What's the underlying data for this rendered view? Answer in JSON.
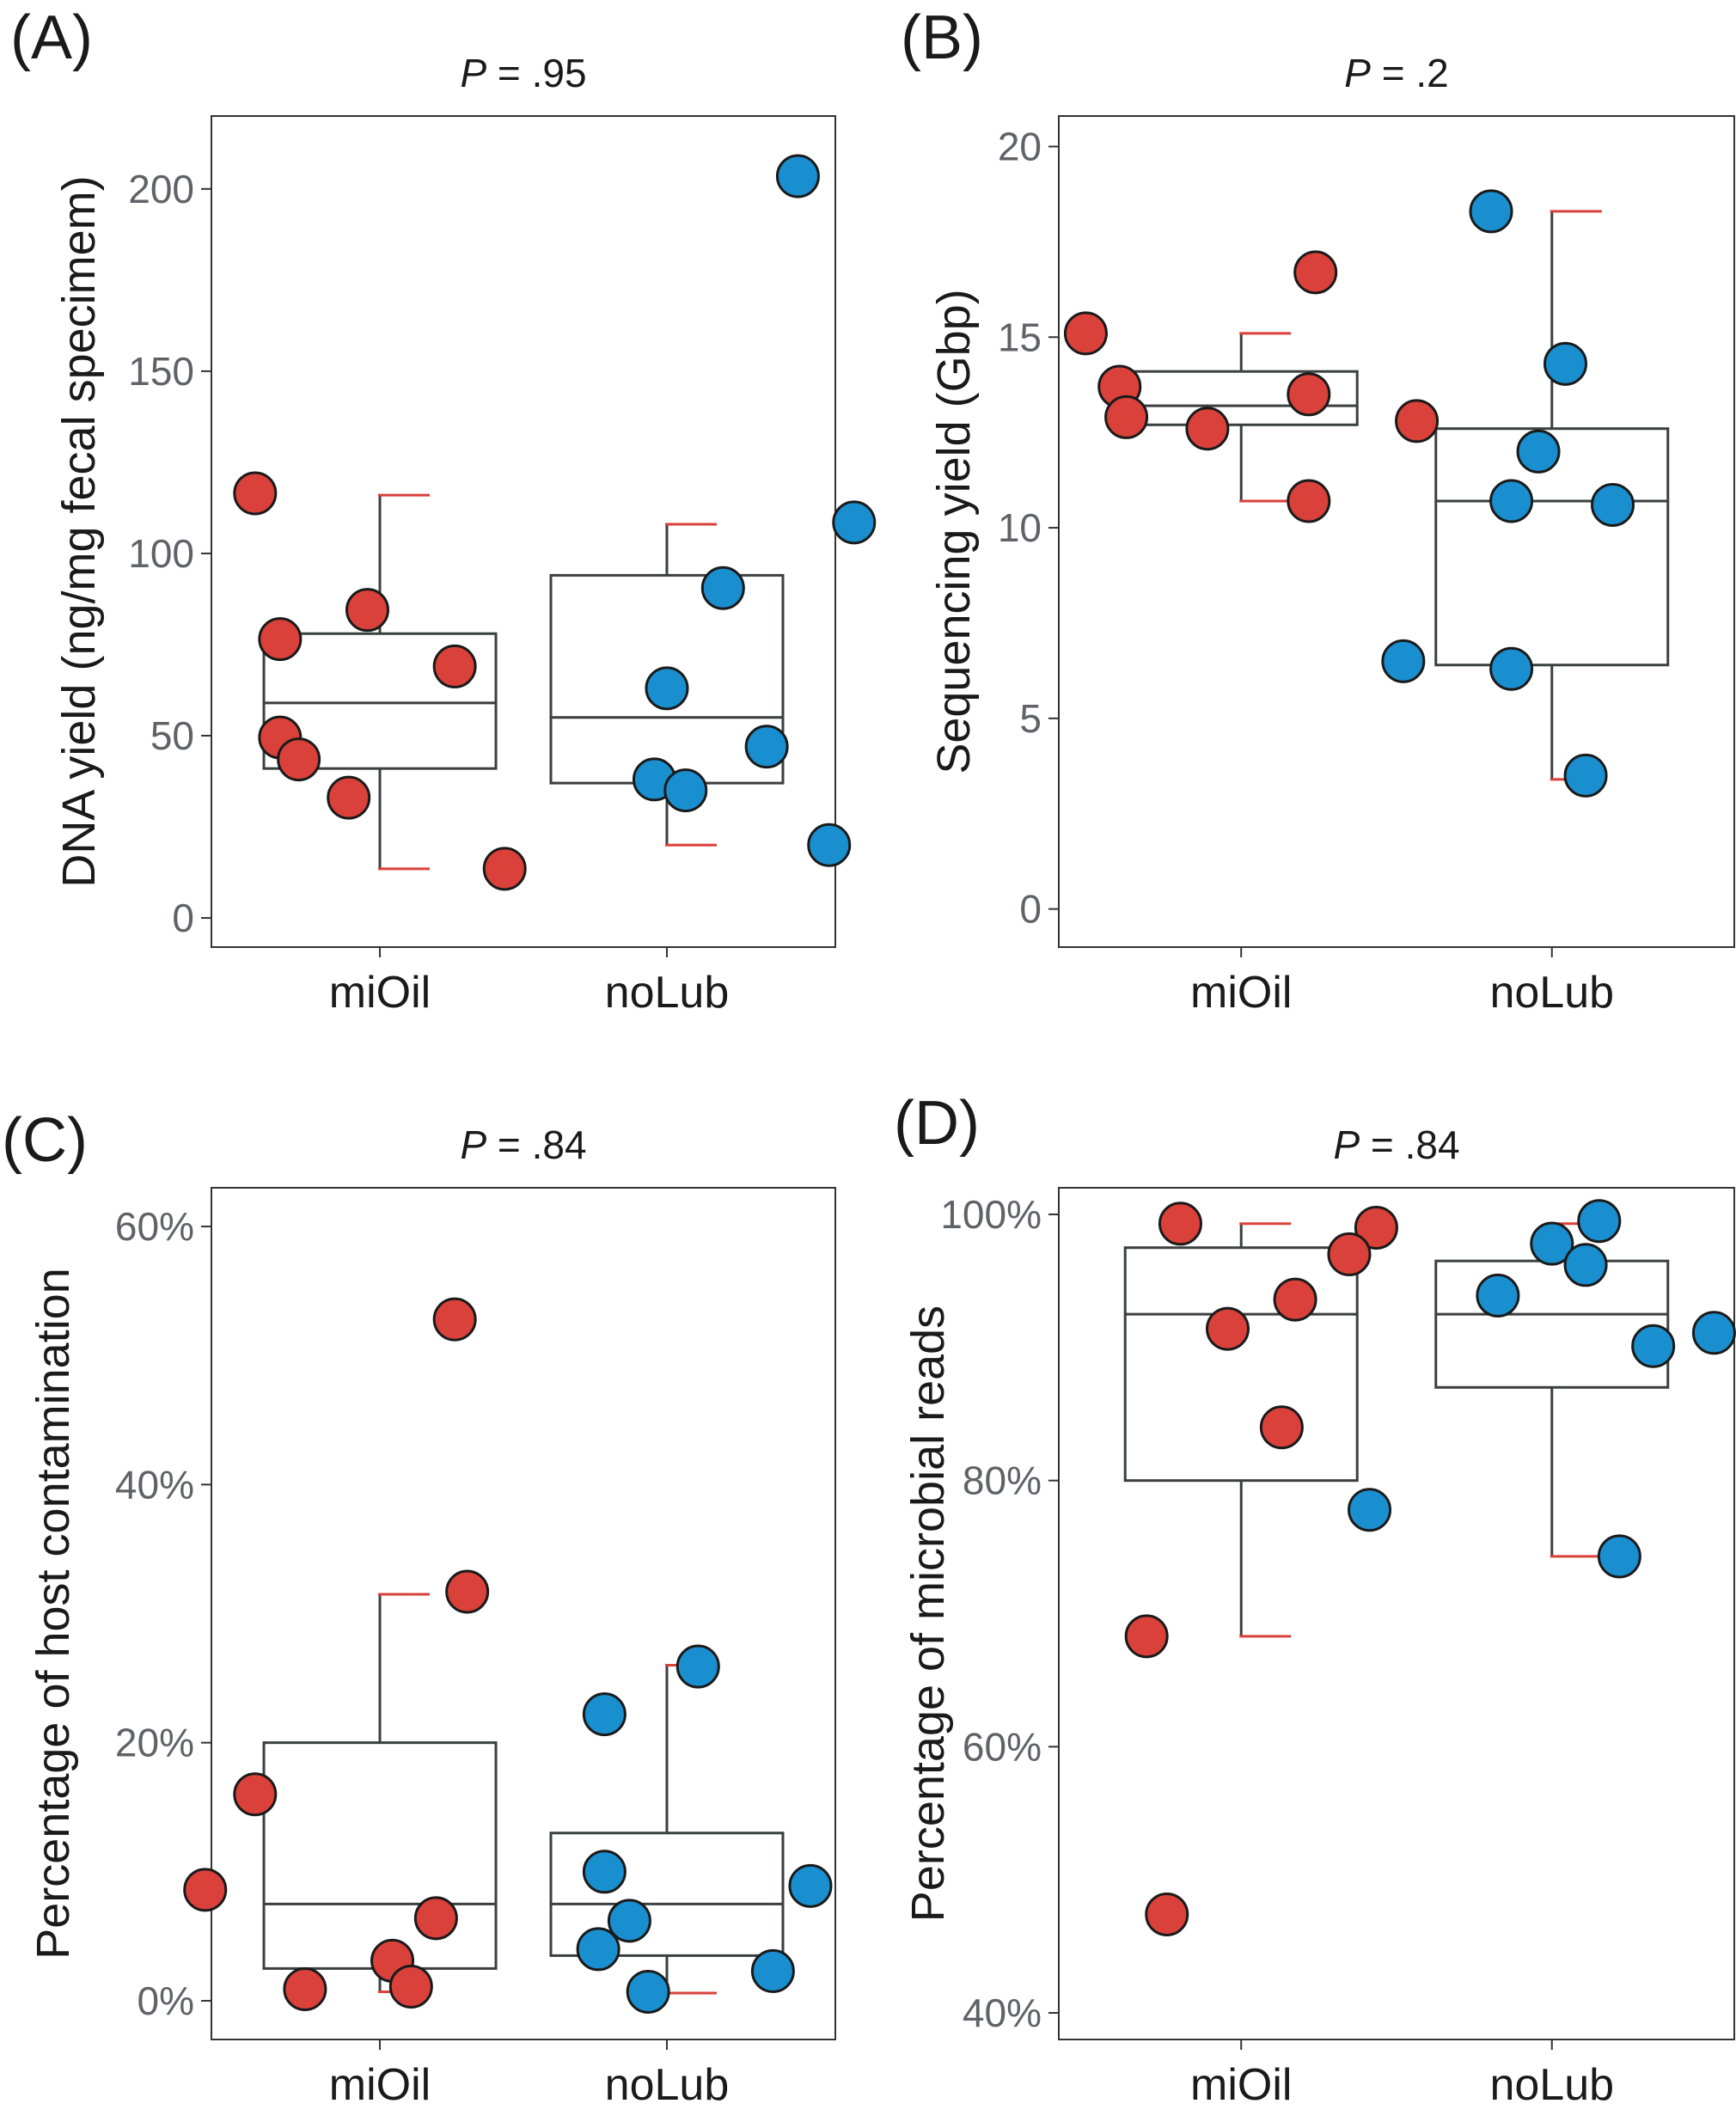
{
  "colors": {
    "miOil": "#d9413a",
    "noLub": "#1a8fcf",
    "box_stroke": "#3a3f3f",
    "whisker_cap": "#d9413a"
  },
  "chart_data": [
    {
      "panel": "(A)",
      "type": "boxplot",
      "p_prefix": "P",
      "p_value": " = .95",
      "ylabel": "DNA yield (ng/mg fecal specimem)",
      "ylim": [
        -8,
        220
      ],
      "yticks": [
        0,
        50,
        100,
        150,
        200
      ],
      "ytick_labels": [
        "0",
        "50",
        "100",
        "150",
        "200"
      ],
      "grid": false,
      "categories": [
        "miOil",
        "noLub"
      ],
      "boxes": [
        {
          "group": "miOil",
          "q1": 41,
          "median": 59,
          "q3": 78,
          "whisker_low": 13.5,
          "whisker_high": 116
        },
        {
          "group": "noLub",
          "q1": 37,
          "median": 55,
          "q3": 94,
          "whisker_low": 20,
          "whisker_high": 108
        }
      ],
      "series": [
        {
          "group": "miOil",
          "points": [
            [
              -0.2,
              116.5
            ],
            [
              -0.02,
              84.5
            ],
            [
              0.12,
              69
            ],
            [
              -0.16,
              76.5
            ],
            [
              -0.16,
              49.5
            ],
            [
              -0.13,
              43.5
            ],
            [
              -0.05,
              33
            ],
            [
              0.2,
              13.5
            ]
          ]
        },
        {
          "group": "noLub",
          "points": [
            [
              0.21,
              203.5
            ],
            [
              0.3,
              108.5
            ],
            [
              0.09,
              90.5
            ],
            [
              0.0,
              63
            ],
            [
              0.16,
              47
            ],
            [
              -0.02,
              38
            ],
            [
              0.03,
              35
            ],
            [
              0.26,
              20
            ]
          ]
        }
      ]
    },
    {
      "panel": "(B)",
      "type": "boxplot",
      "p_prefix": "P",
      "p_value": " = .2",
      "ylabel": "Sequencing yield (Gbp)",
      "ylim": [
        -1,
        20.8
      ],
      "yticks": [
        0,
        5,
        10,
        15,
        20
      ],
      "ytick_labels": [
        "0",
        "5",
        "10",
        "15",
        "20"
      ],
      "grid": false,
      "categories": [
        "miOil",
        "noLub"
      ],
      "boxes": [
        {
          "group": "miOil",
          "q1": 12.7,
          "median": 13.2,
          "q3": 14.1,
          "whisker_low": 10.7,
          "whisker_high": 15.1
        },
        {
          "group": "noLub",
          "q1": 6.4,
          "median": 10.7,
          "q3": 12.6,
          "whisker_low": 3.4,
          "whisker_high": 18.3
        }
      ],
      "series": [
        {
          "group": "miOil",
          "points": [
            [
              0.11,
              16.7
            ],
            [
              -0.23,
              15.1
            ],
            [
              -0.18,
              13.7
            ],
            [
              0.1,
              13.5
            ],
            [
              -0.17,
              12.9
            ],
            [
              -0.05,
              12.6
            ],
            [
              0.26,
              12.8
            ],
            [
              0.1,
              10.7
            ]
          ]
        },
        {
          "group": "noLub",
          "points": [
            [
              -0.09,
              18.3
            ],
            [
              0.02,
              14.3
            ],
            [
              -0.02,
              12.0
            ],
            [
              -0.06,
              10.7
            ],
            [
              0.09,
              10.6
            ],
            [
              -0.22,
              6.5
            ],
            [
              -0.06,
              6.3
            ],
            [
              0.05,
              3.5
            ]
          ]
        }
      ]
    },
    {
      "panel": "(C)",
      "type": "boxplot",
      "p_prefix": "P",
      "p_value": " = .84",
      "ylabel": "Percentage of host contamination",
      "ylim": [
        -0.03,
        0.63
      ],
      "yticks": [
        0,
        0.2,
        0.4,
        0.6
      ],
      "ytick_labels": [
        "0%",
        "20%",
        "40%",
        "60%"
      ],
      "grid": false,
      "categories": [
        "miOil",
        "noLub"
      ],
      "boxes": [
        {
          "group": "miOil",
          "q1": 0.025,
          "median": 0.075,
          "q3": 0.2,
          "whisker_low": 0.007,
          "whisker_high": 0.315
        },
        {
          "group": "noLub",
          "q1": 0.035,
          "median": 0.075,
          "q3": 0.13,
          "whisker_low": 0.006,
          "whisker_high": 0.26
        }
      ],
      "series": [
        {
          "group": "miOil",
          "points": [
            [
              0.12,
              0.528
            ],
            [
              0.14,
              0.317
            ],
            [
              -0.2,
              0.16
            ],
            [
              -0.28,
              0.086
            ],
            [
              0.09,
              0.064
            ],
            [
              0.02,
              0.031
            ],
            [
              -0.12,
              0.009
            ],
            [
              0.05,
              0.011
            ]
          ]
        },
        {
          "group": "noLub",
          "points": [
            [
              0.05,
              0.259
            ],
            [
              -0.1,
              0.222
            ],
            [
              -0.1,
              0.1
            ],
            [
              0.23,
              0.089
            ],
            [
              -0.06,
              0.062
            ],
            [
              -0.11,
              0.04
            ],
            [
              0.17,
              0.023
            ],
            [
              -0.03,
              0.007
            ]
          ]
        }
      ]
    },
    {
      "panel": "(D)",
      "type": "boxplot",
      "p_prefix": "P",
      "p_value": " = .84",
      "ylabel": "Percentage of microbial reads",
      "ylim": [
        0.38,
        1.02
      ],
      "yticks": [
        0.4,
        0.6,
        0.8,
        1.0
      ],
      "ytick_labels": [
        "40%",
        "60%",
        "80%",
        "100%"
      ],
      "grid": false,
      "categories": [
        "miOil",
        "noLub"
      ],
      "boxes": [
        {
          "group": "miOil",
          "q1": 0.8,
          "median": 0.925,
          "q3": 0.975,
          "whisker_low": 0.683,
          "whisker_high": 0.993
        },
        {
          "group": "noLub",
          "q1": 0.87,
          "median": 0.925,
          "q3": 0.965,
          "whisker_low": 0.743,
          "whisker_high": 0.993
        }
      ],
      "series": [
        {
          "group": "miOil",
          "points": [
            [
              -0.09,
              0.993
            ],
            [
              0.2,
              0.99
            ],
            [
              0.16,
              0.97
            ],
            [
              0.08,
              0.936
            ],
            [
              -0.02,
              0.914
            ],
            [
              0.06,
              0.84
            ],
            [
              -0.14,
              0.683
            ],
            [
              -0.11,
              0.474
            ]
          ]
        },
        {
          "group": "noLub",
          "points": [
            [
              0.07,
              0.995
            ],
            [
              0.0,
              0.978
            ],
            [
              0.05,
              0.962
            ],
            [
              -0.08,
              0.939
            ],
            [
              0.24,
              0.911
            ],
            [
              0.15,
              0.901
            ],
            [
              -0.27,
              0.778
            ],
            [
              0.1,
              0.743
            ]
          ]
        }
      ]
    }
  ]
}
